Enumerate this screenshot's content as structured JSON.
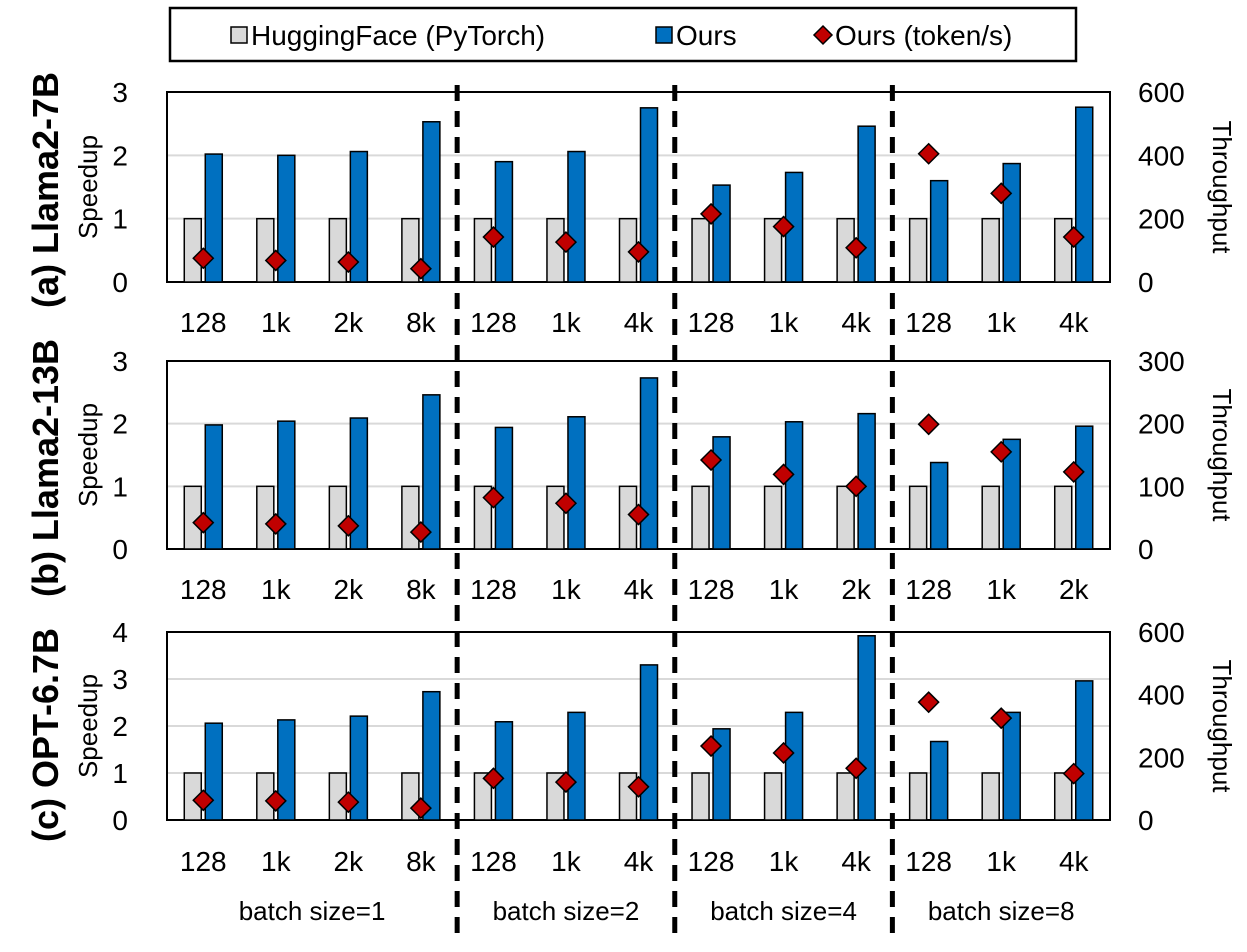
{
  "legend": {
    "items": [
      {
        "label": "HuggingFace (PyTorch)",
        "color": "#d9d9d9",
        "marker": "square"
      },
      {
        "label": "Ours",
        "color": "#0070c0",
        "marker": "square"
      },
      {
        "label": "Ours (token/s)",
        "color": "#c00000",
        "marker": "diamond"
      }
    ]
  },
  "chart_data": [
    {
      "type": "bar",
      "title": "(a) Llama2-7B",
      "ylabel": "Speedup",
      "y2label": "Throughput",
      "ylim": [
        0,
        3
      ],
      "yticks": [
        0,
        1,
        2,
        3
      ],
      "y2lim": [
        0,
        600
      ],
      "y2ticks": [
        0,
        200,
        400,
        600
      ],
      "groups": [
        {
          "label": "batch size=1",
          "categories": [
            "128",
            "1k",
            "2k",
            "8k"
          ]
        },
        {
          "label": "batch size=2",
          "categories": [
            "128",
            "1k",
            "4k"
          ]
        },
        {
          "label": "batch size=4",
          "categories": [
            "128",
            "1k",
            "4k"
          ]
        },
        {
          "label": "batch size=8",
          "categories": [
            "128",
            "1k",
            "4k"
          ]
        }
      ],
      "series": [
        {
          "name": "HuggingFace (PyTorch)",
          "axis": "left",
          "values": [
            1,
            1,
            1,
            1,
            1,
            1,
            1,
            1,
            1,
            1,
            1,
            1,
            1
          ]
        },
        {
          "name": "Ours",
          "axis": "left",
          "values": [
            2.02,
            2.0,
            2.06,
            2.53,
            1.9,
            2.06,
            2.75,
            1.53,
            1.73,
            2.46,
            1.6,
            1.87,
            2.76
          ]
        },
        {
          "name": "Ours (token/s)",
          "axis": "right",
          "values": [
            75,
            68,
            63,
            42,
            142,
            126,
            95,
            215,
            175,
            108,
            405,
            280,
            142
          ]
        }
      ]
    },
    {
      "type": "bar",
      "title": "(b) Llama2-13B",
      "ylabel": "Speedup",
      "y2label": "Throughput",
      "ylim": [
        0,
        3
      ],
      "yticks": [
        0,
        1,
        2,
        3
      ],
      "y2lim": [
        0,
        300
      ],
      "y2ticks": [
        0,
        100,
        200,
        300
      ],
      "groups": [
        {
          "label": "batch size=1",
          "categories": [
            "128",
            "1k",
            "2k",
            "8k"
          ]
        },
        {
          "label": "batch size=2",
          "categories": [
            "128",
            "1k",
            "4k"
          ]
        },
        {
          "label": "batch size=4",
          "categories": [
            "128",
            "1k",
            "2k"
          ]
        },
        {
          "label": "batch size=8",
          "categories": [
            "128",
            "1k",
            "2k"
          ]
        }
      ],
      "series": [
        {
          "name": "HuggingFace (PyTorch)",
          "axis": "left",
          "values": [
            1,
            1,
            1,
            1,
            1,
            1,
            1,
            1,
            1,
            1,
            1,
            1,
            1
          ]
        },
        {
          "name": "Ours",
          "axis": "left",
          "values": [
            1.98,
            2.04,
            2.09,
            2.46,
            1.94,
            2.11,
            2.73,
            1.79,
            2.03,
            2.16,
            1.38,
            1.75,
            1.96
          ]
        },
        {
          "name": "Ours (token/s)",
          "axis": "right",
          "values": [
            42,
            40,
            37,
            27,
            82,
            73,
            55,
            142,
            119,
            100,
            199,
            155,
            123
          ]
        }
      ]
    },
    {
      "type": "bar",
      "title": "(c) OPT-6.7B",
      "ylabel": "Speedup",
      "y2label": "Throughput",
      "ylim": [
        0,
        4
      ],
      "yticks": [
        0,
        1,
        2,
        3,
        4
      ],
      "y2lim": [
        0,
        600
      ],
      "y2ticks": [
        0,
        200,
        400,
        600
      ],
      "groups": [
        {
          "label": "batch size=1",
          "categories": [
            "128",
            "1k",
            "2k",
            "8k"
          ]
        },
        {
          "label": "batch size=2",
          "categories": [
            "128",
            "1k",
            "4k"
          ]
        },
        {
          "label": "batch size=4",
          "categories": [
            "128",
            "1k",
            "4k"
          ]
        },
        {
          "label": "batch size=8",
          "categories": [
            "128",
            "1k",
            "4k"
          ]
        }
      ],
      "series": [
        {
          "name": "HuggingFace (PyTorch)",
          "axis": "left",
          "values": [
            1,
            1,
            1,
            1,
            1,
            1,
            1,
            1,
            1,
            1,
            1,
            1,
            1
          ]
        },
        {
          "name": "Ours",
          "axis": "left",
          "values": [
            2.06,
            2.13,
            2.21,
            2.73,
            2.09,
            2.29,
            3.3,
            1.94,
            2.29,
            3.92,
            1.67,
            2.29,
            2.96
          ]
        },
        {
          "name": "Ours (token/s)",
          "axis": "right",
          "values": [
            63,
            61,
            57,
            38,
            133,
            121,
            106,
            236,
            214,
            165,
            376,
            325,
            148
          ]
        }
      ]
    }
  ]
}
